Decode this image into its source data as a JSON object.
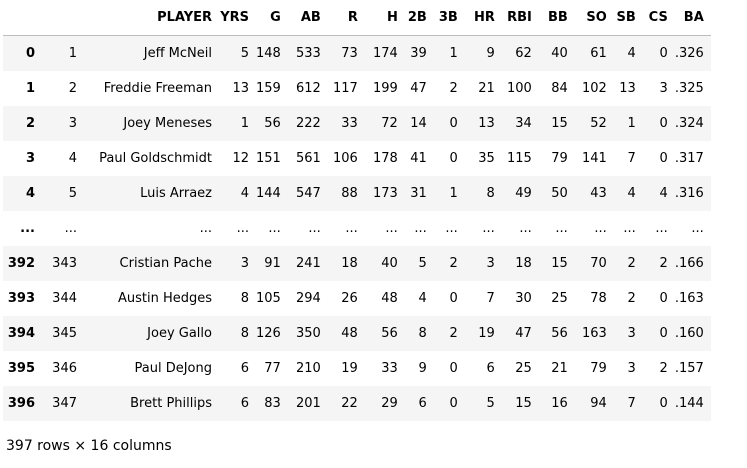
{
  "table": {
    "columns": [
      "",
      "",
      "PLAYER",
      "YRS",
      "G",
      "AB",
      "R",
      "H",
      "2B",
      "3B",
      "HR",
      "RBI",
      "BB",
      "SO",
      "SB",
      "CS",
      "BA"
    ],
    "rows": [
      [
        "0",
        "1",
        "Jeff McNeil",
        "5",
        "148",
        "533",
        "73",
        "174",
        "39",
        "1",
        "9",
        "62",
        "40",
        "61",
        "4",
        "0",
        ".326"
      ],
      [
        "1",
        "2",
        "Freddie Freeman",
        "13",
        "159",
        "612",
        "117",
        "199",
        "47",
        "2",
        "21",
        "100",
        "84",
        "102",
        "13",
        "3",
        ".325"
      ],
      [
        "2",
        "3",
        "Joey Meneses",
        "1",
        "56",
        "222",
        "33",
        "72",
        "14",
        "0",
        "13",
        "34",
        "15",
        "52",
        "1",
        "0",
        ".324"
      ],
      [
        "3",
        "4",
        "Paul Goldschmidt",
        "12",
        "151",
        "561",
        "106",
        "178",
        "41",
        "0",
        "35",
        "115",
        "79",
        "141",
        "7",
        "0",
        ".317"
      ],
      [
        "4",
        "5",
        "Luis Arraez",
        "4",
        "144",
        "547",
        "88",
        "173",
        "31",
        "1",
        "8",
        "49",
        "50",
        "43",
        "4",
        "4",
        ".316"
      ],
      [
        "...",
        "...",
        "...",
        "...",
        "...",
        "...",
        "...",
        "...",
        "...",
        "...",
        "...",
        "...",
        "...",
        "...",
        "...",
        "...",
        "..."
      ],
      [
        "392",
        "343",
        "Cristian Pache",
        "3",
        "91",
        "241",
        "18",
        "40",
        "5",
        "2",
        "3",
        "18",
        "15",
        "70",
        "2",
        "2",
        ".166"
      ],
      [
        "393",
        "344",
        "Austin Hedges",
        "8",
        "105",
        "294",
        "26",
        "48",
        "4",
        "0",
        "7",
        "30",
        "25",
        "78",
        "2",
        "0",
        ".163"
      ],
      [
        "394",
        "345",
        "Joey Gallo",
        "8",
        "126",
        "350",
        "48",
        "56",
        "8",
        "2",
        "19",
        "47",
        "56",
        "163",
        "3",
        "0",
        ".160"
      ],
      [
        "395",
        "346",
        "Paul DeJong",
        "6",
        "77",
        "210",
        "19",
        "33",
        "9",
        "0",
        "6",
        "25",
        "21",
        "79",
        "3",
        "2",
        ".157"
      ],
      [
        "396",
        "347",
        "Brett Phillips",
        "6",
        "83",
        "201",
        "22",
        "29",
        "6",
        "0",
        "5",
        "15",
        "16",
        "94",
        "7",
        "0",
        ".144"
      ]
    ]
  },
  "shape_text": "397 rows × 16 columns"
}
